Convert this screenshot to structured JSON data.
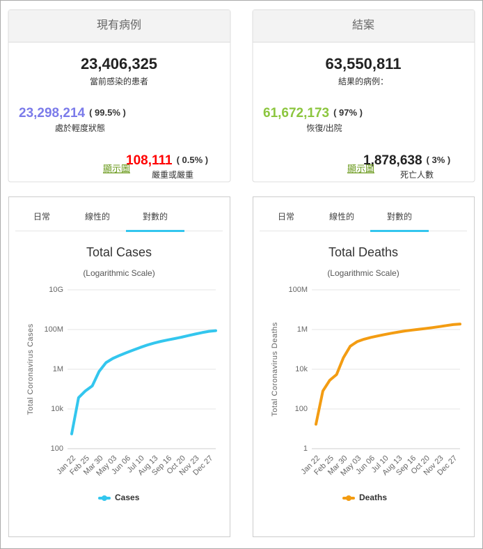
{
  "cards": [
    {
      "header": "現有病例",
      "total": "23,406,325",
      "total_label": "當前感染的患者",
      "left_value": "23,298,214",
      "left_pct": "( 99.5% )",
      "left_label": "處於輕度狀態",
      "right_value": "108,111",
      "right_pct": "( 0.5% )",
      "right_label": "嚴重或嚴重",
      "link": "顯示圖"
    },
    {
      "header": "結案",
      "total": "63,550,811",
      "total_label": "結果的病例：",
      "left_value": "61,672,173",
      "left_pct": "( 97% )",
      "left_label": "恢復/出院",
      "right_value": "1,878,638",
      "right_pct": "( 3% )",
      "right_label": "死亡人數",
      "link": "顯示圖"
    }
  ],
  "chart_data": [
    {
      "type": "line",
      "title": "Total Cases",
      "subtitle": "(Logarithmic Scale)",
      "tabs": [
        "日常",
        "線性的",
        "對數的"
      ],
      "active_tab": 2,
      "y_label": "Total Coronavirus Cases",
      "categories": [
        "Jan 22",
        null,
        "Feb 25",
        null,
        "Mar 30",
        null,
        "May 03",
        null,
        "Jun 06",
        null,
        "Jul 10",
        null,
        "Aug 13",
        null,
        "Sep 16",
        null,
        "Oct 20",
        null,
        "Nov 23",
        null,
        "Dec 27",
        null
      ],
      "series": [
        {
          "name": "Cases",
          "color": "#33c6ee",
          "values": [
            555,
            37000,
            81000,
            145000,
            780000,
            2150000,
            3500000,
            5000000,
            6900000,
            9300000,
            12500000,
            16500000,
            20900000,
            25300000,
            30000000,
            35000000,
            41000000,
            49500000,
            59000000,
            70000000,
            81000000,
            88000000
          ]
        }
      ],
      "log_scale": true,
      "grid": true,
      "ylim": [
        100,
        10000000000
      ],
      "yticks": [
        100,
        {
          "value": 10000,
          "label": "10k"
        },
        {
          "value": 1000000,
          "label": "1M"
        },
        {
          "value": 100000000,
          "label": "100M"
        },
        {
          "value": 10000000000,
          "label": "10G"
        }
      ]
    },
    {
      "type": "line",
      "title": "Total Deaths",
      "subtitle": "(Logarithmic Scale)",
      "tabs": [
        "日常",
        "線性的",
        "對數的"
      ],
      "active_tab": 2,
      "y_label": "Total Coronavirus Deaths",
      "categories": [
        "Jan 22",
        null,
        "Feb 25",
        null,
        "Mar 30",
        null,
        "May 03",
        null,
        "Jun 06",
        null,
        "Jul 10",
        null,
        "Aug 13",
        null,
        "Sep 16",
        null,
        "Oct 20",
        null,
        "Nov 23",
        null,
        "Dec 27",
        null
      ],
      "series": [
        {
          "name": "Deaths",
          "color": "#f39c12",
          "values": [
            17,
            806,
            2770,
            5400,
            37800,
            145000,
            245000,
            325000,
            400000,
            475000,
            560000,
            650000,
            750000,
            850000,
            940000,
            1030000,
            1130000,
            1250000,
            1400000,
            1580000,
            1770000,
            1900000
          ]
        }
      ],
      "log_scale": true,
      "grid": true,
      "ylim": [
        1,
        100000000
      ],
      "yticks": [
        1,
        100,
        {
          "value": 10000,
          "label": "10k"
        },
        {
          "value": 1000000,
          "label": "1M"
        },
        {
          "value": 100000000,
          "label": "100M"
        }
      ]
    }
  ]
}
